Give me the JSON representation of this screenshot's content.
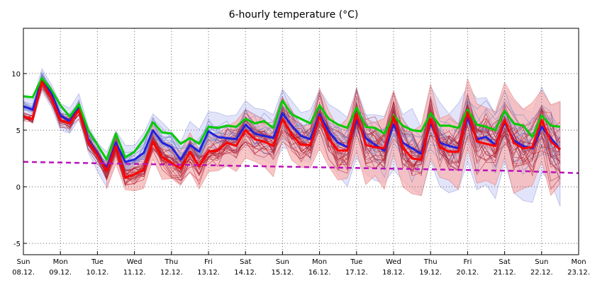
{
  "chart_data": {
    "type": "line",
    "title": "6-hourly temperature (°C)",
    "xlabel": "",
    "ylabel": "",
    "ylim": [
      -6,
      14
    ],
    "yticks": [
      -5,
      0,
      5,
      10
    ],
    "grid": true,
    "x_day_labels": [
      {
        "day": "Sun",
        "date": "08.12."
      },
      {
        "day": "Mon",
        "date": "09.12."
      },
      {
        "day": "Tue",
        "date": "10.12."
      },
      {
        "day": "Wed",
        "date": "11.12."
      },
      {
        "day": "Thu",
        "date": "12.12."
      },
      {
        "day": "Fri",
        "date": "13.12."
      },
      {
        "day": "Sat",
        "date": "14.12."
      },
      {
        "day": "Sun",
        "date": "15.12."
      },
      {
        "day": "Mon",
        "date": "16.12."
      },
      {
        "day": "Tue",
        "date": "17.12."
      },
      {
        "day": "Wed",
        "date": "18.12."
      },
      {
        "day": "Thu",
        "date": "19.12."
      },
      {
        "day": "Fri",
        "date": "20.12."
      },
      {
        "day": "Sat",
        "date": "21.12."
      },
      {
        "day": "Sun",
        "date": "22.12."
      },
      {
        "day": "Mon",
        "date": "23.12."
      }
    ],
    "steps_per_day": 4,
    "colors": {
      "green": "#00cc00",
      "blue": "#2222dd",
      "red": "#ff0000",
      "climate": "#bb11bb",
      "blue_band": "#dde0fa",
      "red_band": "#f8b4b4",
      "blue_members": "#7a86c8",
      "red_members": "#b02030"
    },
    "series": [
      {
        "key": "green",
        "values": [
          8.0,
          7.9,
          9.6,
          8.6,
          7.2,
          6.2,
          7.3,
          5.0,
          3.7,
          2.4,
          4.7,
          2.6,
          3.1,
          4.2,
          5.7,
          4.8,
          4.7,
          3.8,
          4.3,
          3.8,
          5.3,
          5.2,
          5.4,
          5.3,
          6.0,
          5.6,
          5.8,
          5.2,
          7.6,
          6.4,
          6.0,
          5.6,
          7.2,
          6.0,
          5.5,
          5.2,
          7.0,
          5.3,
          5.2,
          4.7,
          6.3,
          5.4,
          5.0,
          4.9,
          6.5,
          5.4,
          5.4,
          5.2,
          6.8,
          5.5,
          5.3,
          5.0,
          6.7,
          5.6,
          5.4,
          4.4,
          6.3,
          5.4,
          5.3
        ]
      },
      {
        "key": "blue",
        "values": [
          7.1,
          6.8,
          9.5,
          8.3,
          6.3,
          5.8,
          7.0,
          4.2,
          2.9,
          1.6,
          3.9,
          2.2,
          2.4,
          3.0,
          5.0,
          3.9,
          3.5,
          2.4,
          3.7,
          3.1,
          4.9,
          4.4,
          4.3,
          4.2,
          5.5,
          4.7,
          4.5,
          4.3,
          6.5,
          5.4,
          4.5,
          4.2,
          6.4,
          4.9,
          3.9,
          3.5,
          5.9,
          4.3,
          3.7,
          3.2,
          5.5,
          3.9,
          3.4,
          2.9,
          5.6,
          3.9,
          3.6,
          3.4,
          6.1,
          4.2,
          4.4,
          3.7,
          5.7,
          4.1,
          3.6,
          3.4,
          5.3,
          4.3,
          3.3
        ]
      },
      {
        "key": "red",
        "values": [
          6.2,
          6.0,
          9.3,
          7.9,
          5.9,
          5.6,
          6.8,
          4.0,
          2.8,
          1.4,
          3.6,
          0.8,
          1.1,
          1.5,
          4.0,
          2.6,
          2.1,
          1.6,
          3.1,
          1.8,
          3.1,
          3.2,
          3.9,
          3.6,
          5.0,
          4.2,
          4.0,
          3.6,
          6.0,
          4.6,
          3.7,
          3.7,
          6.2,
          4.2,
          3.2,
          3.2,
          6.4,
          3.7,
          3.5,
          3.4,
          6.2,
          3.5,
          2.5,
          2.4,
          6.0,
          3.5,
          3.1,
          3.1,
          6.6,
          4.0,
          3.8,
          3.6,
          5.9,
          3.9,
          3.4,
          3.5,
          5.9,
          4.0,
          3.3
        ]
      },
      {
        "key": "climate",
        "values": [
          2.2,
          2.1,
          2.0,
          1.9,
          1.8,
          1.7,
          1.6,
          1.5,
          1.4,
          1.2
        ]
      }
    ]
  }
}
